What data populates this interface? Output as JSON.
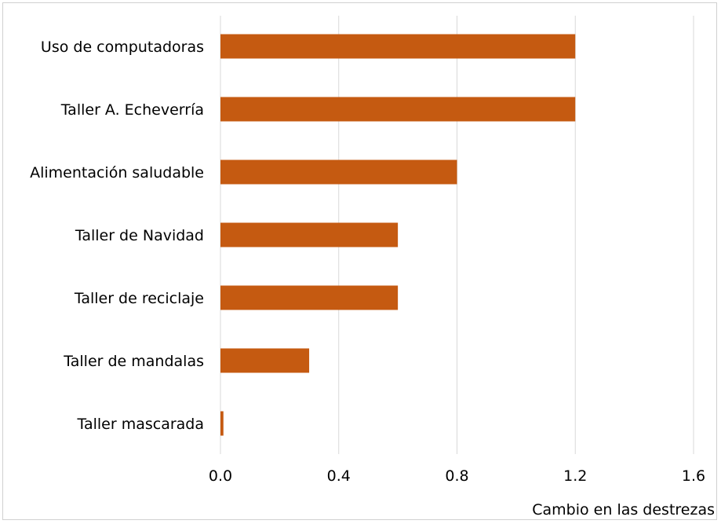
{
  "chart_data": {
    "type": "bar",
    "orientation": "horizontal",
    "categories": [
      "Uso de computadoras",
      "Taller A. Echeverría",
      "Alimentación saludable",
      "Taller de Navidad",
      "Taller de reciclaje",
      "Taller de mandalas",
      "Taller mascarada"
    ],
    "values": [
      1.2,
      1.2,
      0.8,
      0.6,
      0.6,
      0.3,
      0.01
    ],
    "xlabel": "Cambio en las destrezas",
    "ylabel": "",
    "xlim": [
      0,
      1.6
    ],
    "xticks": [
      "0.0",
      "0.4",
      "0.8",
      "1.2",
      "1.6"
    ],
    "grid": "vertical",
    "bar_color": "#C55A11",
    "gridline_color": "#D9D9D9"
  }
}
